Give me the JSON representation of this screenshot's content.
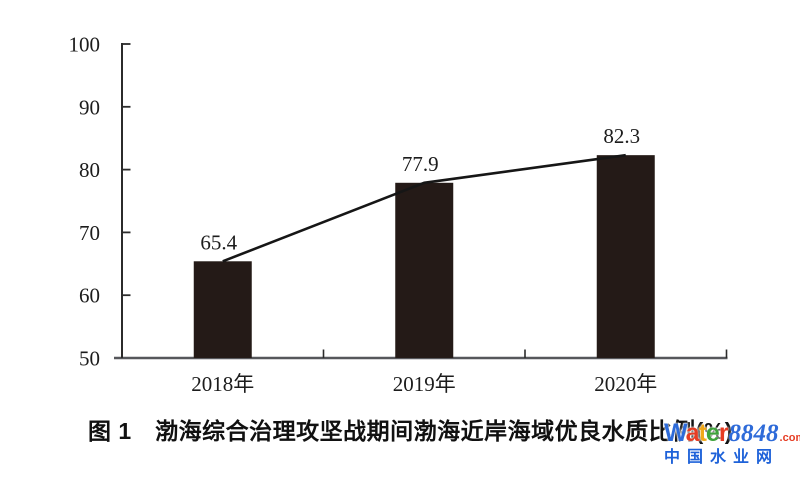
{
  "chart_data": {
    "type": "bar",
    "overlay": "line",
    "title": "图 1　渤海综合治理攻坚战期间渤海近岸海域优良水质比例(%)",
    "categories": [
      "2018年",
      "2019年",
      "2020年"
    ],
    "values": [
      65.4,
      77.9,
      82.3
    ],
    "data_labels": [
      "65.4",
      "77.9",
      "82.3"
    ],
    "ylim": [
      50,
      100
    ],
    "yticks": [
      50,
      60,
      70,
      80,
      90,
      100
    ],
    "grid": false,
    "legend": "none",
    "style": {
      "bar_color": "#241a17",
      "line_color": "#161616",
      "axis_color": "#2b2b2b",
      "baseline_color": "#56575b",
      "text_color": "#1c1c1c"
    }
  },
  "watermark": {
    "brand_letters": [
      {
        "ch": "W",
        "color": "#2e6bd9"
      },
      {
        "ch": "a",
        "color": "#e63c23"
      },
      {
        "ch": "t",
        "color": "#f0a818"
      },
      {
        "ch": "e",
        "color": "#3ea33c"
      },
      {
        "ch": "r",
        "color": "#e63c23"
      }
    ],
    "brand_number": "8848",
    "brand_tld": ".com",
    "subtitle": "中国水业网"
  }
}
